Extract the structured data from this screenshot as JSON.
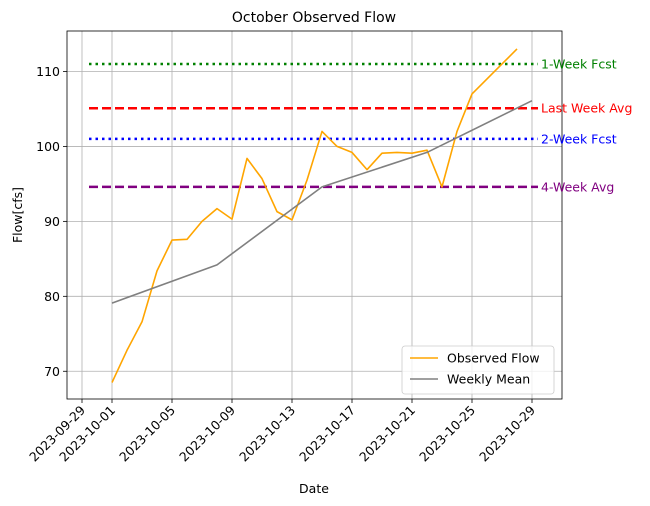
{
  "chart_data": {
    "type": "line",
    "title": "October Observed Flow",
    "xlabel": "Date",
    "ylabel": "Flow[cfs]",
    "xlim": [
      "2023-09-28",
      "2023-10-31"
    ],
    "ylim": [
      66.3,
      115.4
    ],
    "grid": true,
    "legend_position": "lower-right",
    "x_ticks": [
      "2023-09-29",
      "2023-10-01",
      "2023-10-05",
      "2023-10-09",
      "2023-10-13",
      "2023-10-17",
      "2023-10-21",
      "2023-10-25",
      "2023-10-29"
    ],
    "y_ticks": [
      70,
      80,
      90,
      100,
      110
    ],
    "series": [
      {
        "name": "Observed Flow",
        "color": "#ffa500",
        "x": [
          "2023-10-01",
          "2023-10-02",
          "2023-10-03",
          "2023-10-04",
          "2023-10-05",
          "2023-10-06",
          "2023-10-07",
          "2023-10-08",
          "2023-10-09",
          "2023-10-10",
          "2023-10-11",
          "2023-10-12",
          "2023-10-13",
          "2023-10-14",
          "2023-10-15",
          "2023-10-16",
          "2023-10-17",
          "2023-10-18",
          "2023-10-19",
          "2023-10-20",
          "2023-10-21",
          "2023-10-22",
          "2023-10-23",
          "2023-10-24",
          "2023-10-25",
          "2023-10-26",
          "2023-10-27",
          "2023-10-28"
        ],
        "values": [
          68.5,
          72.8,
          76.6,
          83.4,
          87.5,
          87.6,
          90.0,
          91.7,
          90.3,
          98.4,
          95.7,
          91.3,
          90.2,
          95.5,
          102.0,
          100.0,
          99.2,
          96.9,
          99.1,
          99.2,
          99.1,
          99.5,
          94.6,
          102.0,
          107.0,
          109.0,
          111.0,
          113.0
        ]
      },
      {
        "name": "Weekly Mean",
        "color": "#808080",
        "x": [
          "2023-10-01",
          "2023-10-08",
          "2023-10-15",
          "2023-10-22",
          "2023-10-29"
        ],
        "values": [
          79.1,
          84.2,
          94.6,
          99.2,
          106.1
        ]
      }
    ],
    "reference_lines": [
      {
        "label": "1-Week Fcst",
        "value": 111.0,
        "color": "#008000",
        "style": "dotted"
      },
      {
        "label": "Last Week Avg",
        "value": 105.1,
        "color": "#ff0000",
        "style": "dashed"
      },
      {
        "label": "2-Week Fcst",
        "value": 101.0,
        "color": "#0000ff",
        "style": "dotted"
      },
      {
        "label": "4-Week Avg",
        "value": 94.6,
        "color": "#800080",
        "style": "dashed"
      }
    ]
  }
}
